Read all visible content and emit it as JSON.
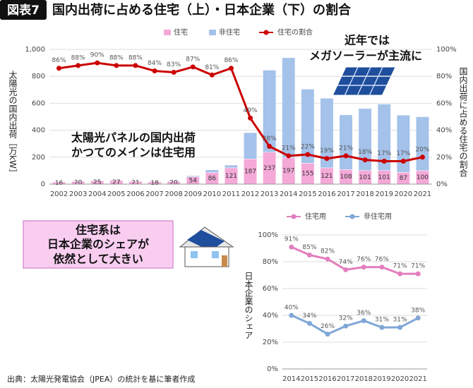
{
  "header": {
    "badge": "図表7",
    "title": "国内出荷に占める住宅（上）・日本企業（下）の割合"
  },
  "chart_data": [
    {
      "type": "bar",
      "stacked": true,
      "grid": true,
      "legend": "top",
      "y_label": "太陽光の国内出荷［万kW］",
      "y2_label": "国内出荷に占める住宅の割合",
      "categories": [
        "2002",
        "2003",
        "2004",
        "2005",
        "2006",
        "2007",
        "2008",
        "2009",
        "2010",
        "2011",
        "2012",
        "2013",
        "2014",
        "2015",
        "2016",
        "2017",
        "2018",
        "2019",
        "2020",
        "2021"
      ],
      "series": [
        {
          "name": "住宅",
          "type": "bar",
          "color": "#f4a9d8",
          "data_labels": true,
          "values": [
            16,
            20,
            25,
            27,
            21,
            18,
            20,
            54,
            86,
            121,
            187,
            237,
            197,
            155,
            121,
            108,
            101,
            101,
            87,
            100
          ]
        },
        {
          "name": "非住宅",
          "type": "bar",
          "color": "#a4c2ea",
          "values": [
            3,
            3,
            3,
            4,
            3,
            3,
            4,
            8,
            20,
            20,
            195,
            609,
            741,
            550,
            516,
            406,
            460,
            493,
            425,
            400
          ]
        },
        {
          "name": "住宅の割合",
          "type": "line",
          "axis": "y2",
          "color": "#cc0000",
          "data_labels": true,
          "values": [
            86,
            88,
            90,
            88,
            88,
            84,
            83,
            87,
            81,
            86,
            49,
            28,
            21,
            22,
            19,
            21,
            18,
            17,
            17,
            20
          ],
          "value_labels": [
            "86%",
            "88%",
            "90%",
            "88%",
            "88%",
            "84%",
            "83%",
            "87%",
            "81%",
            "86%",
            "49%",
            "28%",
            "21%",
            "22%",
            "19%",
            "21%",
            "18%",
            "17%",
            "17%",
            "20%"
          ]
        }
      ],
      "ylim": [
        0,
        1000
      ],
      "yticks": [
        0,
        200,
        400,
        600,
        800,
        {
          "value": 1000,
          "label": "1,000"
        }
      ],
      "y2lim": [
        0,
        100
      ],
      "y2ticks": [
        {
          "value": 0,
          "label": "0%"
        },
        {
          "value": 20,
          "label": "20%"
        },
        {
          "value": 40,
          "label": "40%"
        },
        {
          "value": 60,
          "label": "60%"
        },
        {
          "value": 80,
          "label": "80%"
        },
        {
          "value": 100,
          "label": "100%"
        }
      ],
      "annotations": [
        "近年では",
        "メガソーラーが主流に",
        "太陽光パネルの国内出荷",
        "かつてのメインは住宅用"
      ]
    },
    {
      "type": "line",
      "grid": true,
      "legend": "top",
      "y_label": "日本企業のシェア",
      "categories": [
        "2014",
        "2015",
        "2016",
        "2017",
        "2018",
        "2019",
        "2020",
        "2021"
      ],
      "series": [
        {
          "name": "住宅用",
          "type": "line",
          "color": "#e27fbe",
          "data_labels": true,
          "values": [
            91,
            85,
            82,
            74,
            76,
            76,
            71,
            71
          ],
          "value_labels": [
            "91%",
            "85%",
            "82%",
            "74%",
            "76%",
            "76%",
            "71%",
            "71%"
          ]
        },
        {
          "name": "非住宅用",
          "type": "line",
          "color": "#7fa7d6",
          "data_labels": true,
          "values": [
            40,
            34,
            26,
            32,
            36,
            31,
            31,
            38
          ],
          "value_labels": [
            "40%",
            "34%",
            "26%",
            "32%",
            "36%",
            "31%",
            "31%",
            "38%"
          ]
        }
      ],
      "ylim": [
        0,
        100
      ],
      "yticks": [
        {
          "value": 0,
          "label": "0%"
        },
        {
          "value": 20,
          "label": "20%"
        },
        {
          "value": 40,
          "label": "40%"
        },
        {
          "value": 60,
          "label": "60%"
        },
        {
          "value": 80,
          "label": "80%"
        },
        {
          "value": 100,
          "label": "100%"
        }
      ],
      "annotations": [
        "住宅系は",
        "日本企業のシェアが",
        "依然として大きい"
      ]
    }
  ],
  "source": "出典：太陽光発電協会（JPEA）の統計を基に筆者作成"
}
